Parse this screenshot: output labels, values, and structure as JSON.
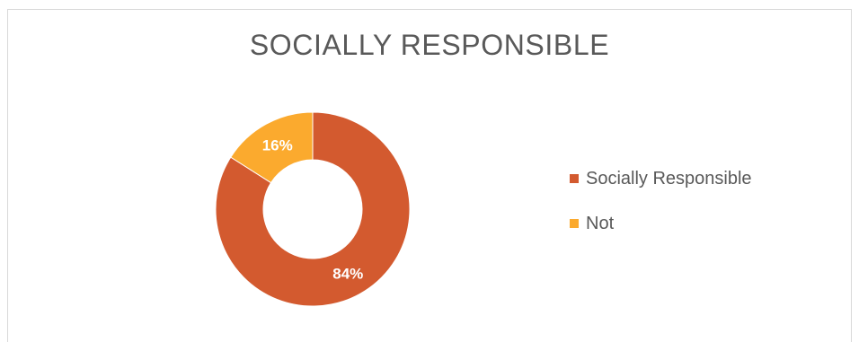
{
  "chart_data": {
    "type": "pie",
    "subtype": "donut",
    "title": "SOCIALLY RESPONSIBLE",
    "categories": [
      "Socially Responsible",
      "Not"
    ],
    "values": [
      84,
      16
    ],
    "data_labels": [
      "84%",
      "16%"
    ],
    "colors": [
      "#D35A2F",
      "#FBAA2E"
    ],
    "legend_position": "right"
  }
}
